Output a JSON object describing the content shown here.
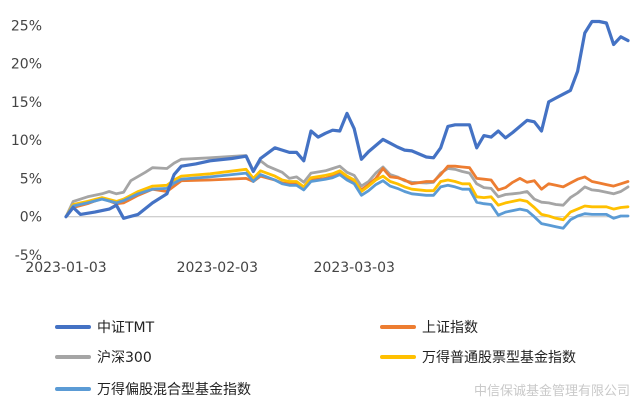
{
  "chart_data": {
    "type": "line",
    "title": "",
    "xlabel": "",
    "ylabel": "",
    "x_ticks": [
      "2023-01-03",
      "2023-02-03",
      "2023-03-03"
    ],
    "y_ticks": [
      "25%",
      "20%",
      "15%",
      "10%",
      "5%",
      "0%",
      "-5%"
    ],
    "ylim": [
      -5,
      27
    ],
    "grid": false,
    "legend_position": "bottom",
    "series": [
      {
        "name": "中证TMT",
        "color": "#4472c4",
        "points": [
          [
            0,
            0
          ],
          [
            1,
            1.2
          ],
          [
            2,
            0.3
          ],
          [
            4,
            0.6
          ],
          [
            6,
            1.0
          ],
          [
            7,
            1.5
          ],
          [
            8,
            -0.2
          ],
          [
            10,
            0.3
          ],
          [
            12,
            1.8
          ],
          [
            14,
            3.0
          ],
          [
            15,
            5.5
          ],
          [
            16,
            6.6
          ],
          [
            18,
            6.9
          ],
          [
            20,
            7.3
          ],
          [
            23,
            7.6
          ],
          [
            25,
            7.9
          ],
          [
            26,
            5.9
          ],
          [
            27,
            7.6
          ],
          [
            29,
            9.0
          ],
          [
            30,
            8.7
          ],
          [
            31,
            8.4
          ],
          [
            32,
            8.4
          ],
          [
            33,
            7.3
          ],
          [
            34,
            11.2
          ],
          [
            35,
            10.4
          ],
          [
            36,
            10.9
          ],
          [
            37,
            11.3
          ],
          [
            38,
            11.2
          ],
          [
            39,
            13.5
          ],
          [
            40,
            11.5
          ],
          [
            41,
            7.5
          ],
          [
            42,
            8.5
          ],
          [
            44,
            10.1
          ],
          [
            45,
            9.6
          ],
          [
            46,
            9.1
          ],
          [
            47,
            8.7
          ],
          [
            48,
            8.6
          ],
          [
            50,
            7.8
          ],
          [
            51,
            7.7
          ],
          [
            52,
            9.0
          ],
          [
            53,
            11.8
          ],
          [
            54,
            12.0
          ],
          [
            55,
            12.0
          ],
          [
            56,
            12.0
          ],
          [
            57,
            9.0
          ],
          [
            58,
            10.6
          ],
          [
            59,
            10.4
          ],
          [
            60,
            11.2
          ],
          [
            61,
            10.3
          ],
          [
            62,
            11.0
          ],
          [
            64,
            12.6
          ],
          [
            65,
            12.4
          ],
          [
            66,
            11.2
          ],
          [
            67,
            15.0
          ],
          [
            68,
            15.5
          ],
          [
            69,
            16.0
          ],
          [
            70,
            16.5
          ],
          [
            71,
            19.0
          ],
          [
            72,
            24.0
          ],
          [
            73,
            25.5
          ],
          [
            74,
            25.5
          ],
          [
            75,
            25.3
          ],
          [
            76,
            22.5
          ],
          [
            77,
            23.5
          ],
          [
            78,
            23.0
          ]
        ]
      },
      {
        "name": "上证指数",
        "color": "#ed7d31",
        "points": [
          [
            0,
            0
          ],
          [
            1,
            1.2
          ],
          [
            3,
            1.7
          ],
          [
            5,
            2.4
          ],
          [
            7,
            1.7
          ],
          [
            8,
            1.8
          ],
          [
            10,
            2.8
          ],
          [
            12,
            3.6
          ],
          [
            14,
            3.3
          ],
          [
            15,
            4.0
          ],
          [
            16,
            4.7
          ],
          [
            20,
            4.8
          ],
          [
            25,
            5.0
          ],
          [
            26,
            4.6
          ],
          [
            27,
            5.3
          ],
          [
            29,
            4.8
          ],
          [
            30,
            4.4
          ],
          [
            31,
            4.3
          ],
          [
            32,
            4.3
          ],
          [
            33,
            3.6
          ],
          [
            34,
            4.8
          ],
          [
            36,
            5.0
          ],
          [
            37,
            5.3
          ],
          [
            38,
            5.8
          ],
          [
            39,
            5.1
          ],
          [
            40,
            4.6
          ],
          [
            41,
            3.5
          ],
          [
            42,
            4.2
          ],
          [
            43,
            5.0
          ],
          [
            44,
            6.3
          ],
          [
            45,
            5.2
          ],
          [
            46,
            5.1
          ],
          [
            47,
            4.8
          ],
          [
            48,
            4.3
          ],
          [
            50,
            4.6
          ],
          [
            51,
            4.6
          ],
          [
            52,
            5.5
          ],
          [
            53,
            6.6
          ],
          [
            54,
            6.6
          ],
          [
            55,
            6.5
          ],
          [
            56,
            6.4
          ],
          [
            57,
            5.0
          ],
          [
            58,
            4.9
          ],
          [
            59,
            4.8
          ],
          [
            60,
            3.5
          ],
          [
            61,
            3.8
          ],
          [
            62,
            4.5
          ],
          [
            63,
            5.0
          ],
          [
            64,
            4.5
          ],
          [
            65,
            4.7
          ],
          [
            66,
            3.6
          ],
          [
            67,
            4.3
          ],
          [
            68,
            4.1
          ],
          [
            69,
            3.9
          ],
          [
            70,
            4.4
          ],
          [
            71,
            4.9
          ],
          [
            72,
            5.2
          ],
          [
            73,
            4.6
          ],
          [
            74,
            4.4
          ],
          [
            75,
            4.2
          ],
          [
            76,
            4.0
          ],
          [
            77,
            4.3
          ],
          [
            78,
            4.6
          ]
        ]
      },
      {
        "name": "沪深300",
        "color": "#a5a5a5",
        "points": [
          [
            0,
            0
          ],
          [
            1,
            2.0
          ],
          [
            3,
            2.6
          ],
          [
            5,
            3.0
          ],
          [
            6,
            3.3
          ],
          [
            7,
            3.0
          ],
          [
            8,
            3.2
          ],
          [
            9,
            4.7
          ],
          [
            11,
            5.8
          ],
          [
            12,
            6.4
          ],
          [
            14,
            6.3
          ],
          [
            15,
            7.0
          ],
          [
            16,
            7.5
          ],
          [
            20,
            7.7
          ],
          [
            25,
            8.0
          ],
          [
            26,
            6.0
          ],
          [
            27,
            7.3
          ],
          [
            28,
            6.6
          ],
          [
            30,
            5.8
          ],
          [
            31,
            5.0
          ],
          [
            32,
            5.2
          ],
          [
            33,
            4.5
          ],
          [
            34,
            5.7
          ],
          [
            36,
            6.0
          ],
          [
            37,
            6.3
          ],
          [
            38,
            6.6
          ],
          [
            39,
            5.8
          ],
          [
            40,
            5.4
          ],
          [
            41,
            4.0
          ],
          [
            42,
            4.6
          ],
          [
            43,
            5.7
          ],
          [
            44,
            6.5
          ],
          [
            45,
            5.5
          ],
          [
            46,
            5.2
          ],
          [
            47,
            4.7
          ],
          [
            48,
            4.5
          ],
          [
            50,
            4.4
          ],
          [
            51,
            4.5
          ],
          [
            52,
            5.7
          ],
          [
            53,
            6.3
          ],
          [
            54,
            6.2
          ],
          [
            55,
            5.9
          ],
          [
            56,
            5.7
          ],
          [
            57,
            4.3
          ],
          [
            58,
            3.8
          ],
          [
            59,
            3.7
          ],
          [
            60,
            2.6
          ],
          [
            61,
            2.9
          ],
          [
            62,
            3.0
          ],
          [
            63,
            3.1
          ],
          [
            64,
            3.3
          ],
          [
            65,
            2.3
          ],
          [
            66,
            1.9
          ],
          [
            67,
            1.8
          ],
          [
            68,
            1.6
          ],
          [
            69,
            1.5
          ],
          [
            70,
            2.5
          ],
          [
            71,
            3.1
          ],
          [
            72,
            3.9
          ],
          [
            73,
            3.5
          ],
          [
            74,
            3.4
          ],
          [
            75,
            3.2
          ],
          [
            76,
            3.0
          ],
          [
            77,
            3.3
          ],
          [
            78,
            3.9
          ]
        ]
      },
      {
        "name": "万得普通股票型基金指数",
        "color": "#ffc000",
        "points": [
          [
            0,
            0
          ],
          [
            1,
            1.6
          ],
          [
            3,
            2.0
          ],
          [
            5,
            2.5
          ],
          [
            7,
            2.0
          ],
          [
            8,
            2.3
          ],
          [
            10,
            3.3
          ],
          [
            12,
            4.0
          ],
          [
            14,
            4.1
          ],
          [
            15,
            4.8
          ],
          [
            16,
            5.3
          ],
          [
            20,
            5.6
          ],
          [
            25,
            6.2
          ],
          [
            26,
            5.0
          ],
          [
            27,
            6.0
          ],
          [
            29,
            5.3
          ],
          [
            30,
            4.8
          ],
          [
            31,
            4.6
          ],
          [
            32,
            4.6
          ],
          [
            33,
            3.9
          ],
          [
            34,
            5.1
          ],
          [
            36,
            5.4
          ],
          [
            37,
            5.6
          ],
          [
            38,
            6.0
          ],
          [
            39,
            5.3
          ],
          [
            40,
            4.8
          ],
          [
            41,
            3.3
          ],
          [
            42,
            4.0
          ],
          [
            43,
            4.8
          ],
          [
            44,
            5.3
          ],
          [
            45,
            4.6
          ],
          [
            46,
            4.3
          ],
          [
            47,
            3.9
          ],
          [
            48,
            3.6
          ],
          [
            50,
            3.4
          ],
          [
            51,
            3.4
          ],
          [
            52,
            4.6
          ],
          [
            53,
            4.8
          ],
          [
            54,
            4.6
          ],
          [
            55,
            4.3
          ],
          [
            56,
            4.3
          ],
          [
            57,
            2.6
          ],
          [
            58,
            2.5
          ],
          [
            59,
            2.6
          ],
          [
            60,
            1.5
          ],
          [
            61,
            1.8
          ],
          [
            62,
            2.0
          ],
          [
            63,
            2.2
          ],
          [
            64,
            2.0
          ],
          [
            65,
            1.2
          ],
          [
            66,
            0.3
          ],
          [
            67,
            0.1
          ],
          [
            68,
            -0.2
          ],
          [
            69,
            -0.4
          ],
          [
            70,
            0.6
          ],
          [
            71,
            1.0
          ],
          [
            72,
            1.4
          ],
          [
            73,
            1.3
          ],
          [
            74,
            1.3
          ],
          [
            75,
            1.3
          ],
          [
            76,
            1.0
          ],
          [
            77,
            1.2
          ],
          [
            78,
            1.3
          ]
        ]
      },
      {
        "name": "万得偏股混合型基金指数",
        "color": "#5b9bd5",
        "points": [
          [
            0,
            0
          ],
          [
            1,
            1.4
          ],
          [
            3,
            1.8
          ],
          [
            5,
            2.3
          ],
          [
            7,
            1.8
          ],
          [
            8,
            2.1
          ],
          [
            10,
            3.0
          ],
          [
            12,
            3.6
          ],
          [
            14,
            3.7
          ],
          [
            15,
            4.4
          ],
          [
            16,
            4.9
          ],
          [
            20,
            5.2
          ],
          [
            25,
            5.7
          ],
          [
            26,
            4.6
          ],
          [
            27,
            5.5
          ],
          [
            29,
            4.8
          ],
          [
            30,
            4.3
          ],
          [
            31,
            4.1
          ],
          [
            32,
            4.1
          ],
          [
            33,
            3.5
          ],
          [
            34,
            4.6
          ],
          [
            36,
            4.9
          ],
          [
            37,
            5.1
          ],
          [
            38,
            5.5
          ],
          [
            39,
            4.8
          ],
          [
            40,
            4.3
          ],
          [
            41,
            2.8
          ],
          [
            42,
            3.4
          ],
          [
            43,
            4.2
          ],
          [
            44,
            4.7
          ],
          [
            45,
            4.0
          ],
          [
            46,
            3.7
          ],
          [
            47,
            3.3
          ],
          [
            48,
            3.0
          ],
          [
            50,
            2.8
          ],
          [
            51,
            2.8
          ],
          [
            52,
            3.9
          ],
          [
            53,
            4.1
          ],
          [
            54,
            3.9
          ],
          [
            55,
            3.6
          ],
          [
            56,
            3.6
          ],
          [
            57,
            1.9
          ],
          [
            58,
            1.7
          ],
          [
            59,
            1.6
          ],
          [
            60,
            0.2
          ],
          [
            61,
            0.6
          ],
          [
            62,
            0.8
          ],
          [
            63,
            1.0
          ],
          [
            64,
            0.8
          ],
          [
            65,
            0.0
          ],
          [
            66,
            -0.9
          ],
          [
            67,
            -1.1
          ],
          [
            68,
            -1.3
          ],
          [
            69,
            -1.5
          ],
          [
            70,
            -0.4
          ],
          [
            71,
            0.1
          ],
          [
            72,
            0.4
          ],
          [
            73,
            0.3
          ],
          [
            74,
            0.3
          ],
          [
            75,
            0.3
          ],
          [
            76,
            -0.2
          ],
          [
            77,
            0.1
          ],
          [
            78,
            0.1
          ]
        ]
      }
    ]
  },
  "watermark": "中信保诚基金管理有限公司"
}
